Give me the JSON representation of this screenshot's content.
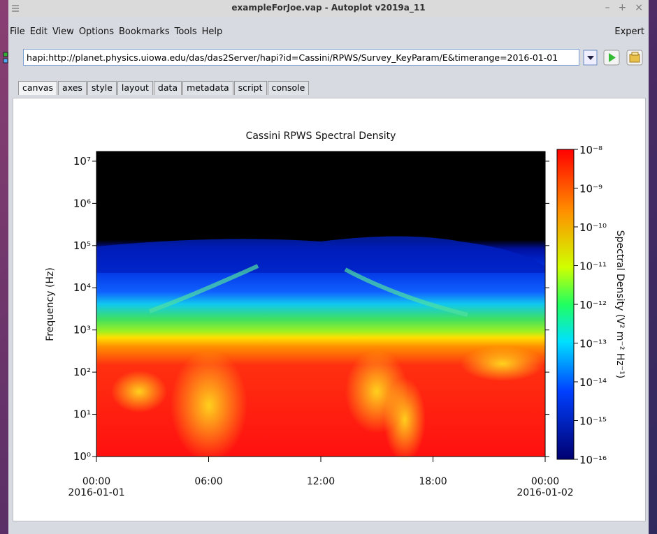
{
  "window": {
    "title": "exampleForJoe.vap - Autoplot v2019a_11",
    "controls": [
      "–",
      "+",
      "×"
    ]
  },
  "menu": {
    "items": [
      "File",
      "Edit",
      "View",
      "Options",
      "Bookmarks",
      "Tools",
      "Help"
    ],
    "right": "Expert"
  },
  "toolbar": {
    "uri": "hapi:http://planet.physics.uiowa.edu/das/das2Server/hapi?id=Cassini/RPWS/Survey_KeyParam/E&timerange=2016-01-01"
  },
  "tabs": {
    "items": [
      "canvas",
      "axes",
      "style",
      "layout",
      "data",
      "metadata",
      "script",
      "console"
    ],
    "selected": 0
  },
  "chart_data": {
    "type": "spectrogram",
    "title": "Cassini RPWS Spectral Density",
    "y_label": "Frequency (Hz)",
    "z_label": "Spectral Density (V² m⁻² Hz⁻¹)",
    "xlim": [
      0,
      24
    ],
    "xticks": [
      {
        "value": 0,
        "label": "00:00",
        "date": "2016-01-01"
      },
      {
        "value": 6,
        "label": "06:00"
      },
      {
        "value": 12,
        "label": "12:00"
      },
      {
        "value": 18,
        "label": "18:00"
      },
      {
        "value": 24,
        "label": "00:00",
        "date": "2016-01-02"
      }
    ],
    "ylim": [
      1,
      17000000
    ],
    "y_log": true,
    "yticks": [
      {
        "value": 1,
        "label": "10⁰"
      },
      {
        "value": 10,
        "label": "10¹"
      },
      {
        "value": 100,
        "label": "10²"
      },
      {
        "value": 1000,
        "label": "10³"
      },
      {
        "value": 10000,
        "label": "10⁴"
      },
      {
        "value": 100000,
        "label": "10⁵"
      },
      {
        "value": 1000000,
        "label": "10⁶"
      },
      {
        "value": 10000000,
        "label": "10⁷"
      }
    ],
    "zlim": [
      1e-16,
      1e-08
    ],
    "z_log": true,
    "zticks": [
      {
        "value": 1e-08,
        "label": "10⁻⁸"
      },
      {
        "value": 1e-09,
        "label": "10⁻⁹"
      },
      {
        "value": 1e-10,
        "label": "10⁻¹⁰"
      },
      {
        "value": 1e-11,
        "label": "10⁻¹¹"
      },
      {
        "value": 1e-12,
        "label": "10⁻¹²"
      },
      {
        "value": 1e-13,
        "label": "10⁻¹³"
      },
      {
        "value": 1e-14,
        "label": "10⁻¹⁴"
      },
      {
        "value": 1e-15,
        "label": "10⁻¹⁵"
      },
      {
        "value": 1e-16,
        "label": "10⁻¹⁶"
      }
    ]
  }
}
